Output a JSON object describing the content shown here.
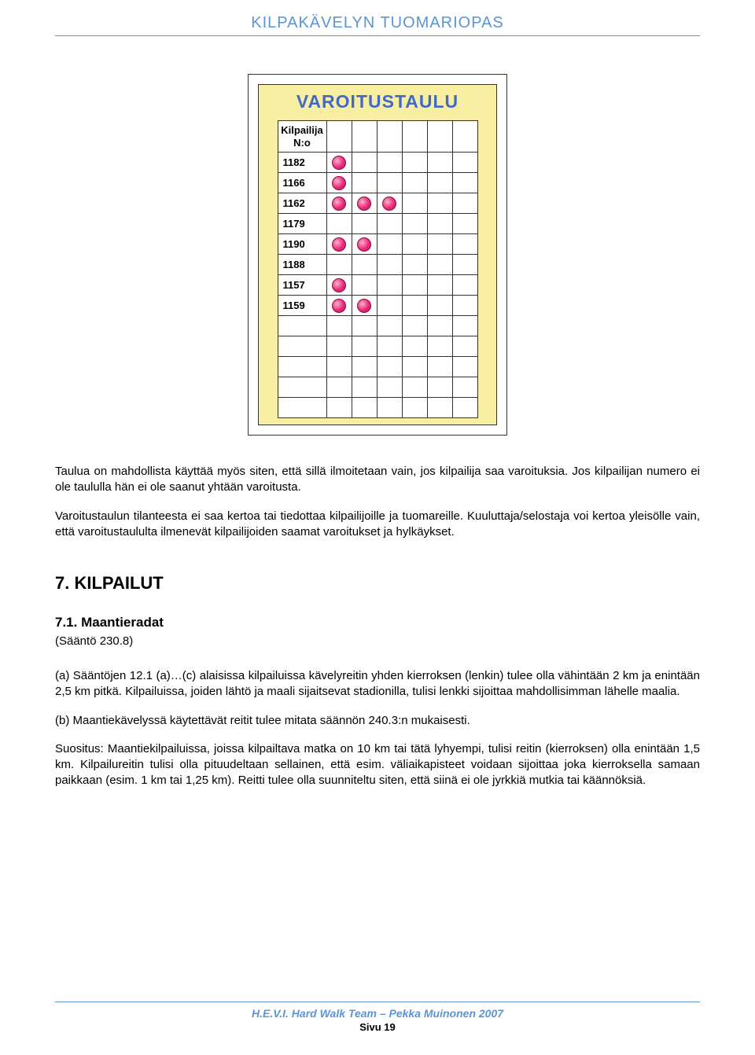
{
  "header": {
    "title": "KILPAKÄVELYN TUOMARIOPAS"
  },
  "board": {
    "title": "VAROITUSTAULU",
    "header_line1": "Kilpailija",
    "header_line2": "N:o",
    "col_widths": {
      "num": 62,
      "dot": 32
    },
    "dot_color": "#e82a7a",
    "background": "#f8eea2",
    "rows": [
      {
        "num": "1182",
        "dots": [
          true,
          false,
          false,
          false,
          false,
          false
        ]
      },
      {
        "num": "1166",
        "dots": [
          true,
          false,
          false,
          false,
          false,
          false
        ]
      },
      {
        "num": "1162",
        "dots": [
          true,
          true,
          true,
          false,
          false,
          false
        ]
      },
      {
        "num": "1179",
        "dots": [
          false,
          false,
          false,
          false,
          false,
          false
        ]
      },
      {
        "num": "1190",
        "dots": [
          true,
          true,
          false,
          false,
          false,
          false
        ]
      },
      {
        "num": "1188",
        "dots": [
          false,
          false,
          false,
          false,
          false,
          false
        ]
      },
      {
        "num": "1157",
        "dots": [
          true,
          false,
          false,
          false,
          false,
          false
        ]
      },
      {
        "num": "1159",
        "dots": [
          true,
          true,
          false,
          false,
          false,
          false
        ]
      },
      {
        "num": "",
        "dots": [
          false,
          false,
          false,
          false,
          false,
          false
        ]
      },
      {
        "num": "",
        "dots": [
          false,
          false,
          false,
          false,
          false,
          false
        ]
      },
      {
        "num": "",
        "dots": [
          false,
          false,
          false,
          false,
          false,
          false
        ]
      },
      {
        "num": "",
        "dots": [
          false,
          false,
          false,
          false,
          false,
          false
        ]
      },
      {
        "num": "",
        "dots": [
          false,
          false,
          false,
          false,
          false,
          false
        ]
      }
    ]
  },
  "paragraphs": {
    "p1": "Taulua on mahdollista käyttää myös siten, että sillä ilmoitetaan vain, jos kilpailija saa varoituksia. Jos kilpailijan numero ei ole taululla hän ei ole saanut yhtään varoitusta.",
    "p2": "Varoitustaulun tilanteesta ei saa kertoa tai tiedottaa kilpailijoille ja tuomareille. Kuuluttaja/selostaja voi kertoa yleisölle vain, että varoitustaululta ilmenevät kilpailijoiden saamat varoitukset ja hylkäykset."
  },
  "section": {
    "heading": "7. KILPAILUT",
    "sub_heading": "7.1. Maantieradat",
    "rule_ref": "(Sääntö 230.8)",
    "pa": "(a) Sääntöjen 12.1 (a)…(c) alaisissa kilpailuissa kävelyreitin yhden kierroksen (lenkin) tulee olla vähintään 2 km ja enintään 2,5 km pitkä. Kilpailuissa, joiden lähtö ja maali sijaitsevat stadionilla, tulisi lenkki sijoittaa mahdollisimman lähelle maalia.",
    "pb": "(b) Maantiekävelyssä käytettävät reitit tulee mitata säännön 240.3:n mukaisesti.",
    "pc": "Suositus: Maantiekilpailuissa, joissa kilpailtava matka on 10 km tai tätä lyhyempi, tulisi reitin (kierroksen) olla enintään 1,5 km. Kilpailureitin tulisi olla pituudeltaan sellainen, että esim. väliaikapisteet voidaan sijoittaa joka kierroksella samaan paikkaan (esim. 1 km tai 1,25 km). Reitti tulee olla suunniteltu siten, että siinä ei ole jyrkkiä mutkia tai käännöksiä."
  },
  "footer": {
    "team": "H.E.V.I. Hard Walk Team – Pekka Muinonen 2007",
    "page": "Sivu 19"
  },
  "colors": {
    "header_blue": "#5a95d6",
    "title_blue": "#4169c8"
  }
}
